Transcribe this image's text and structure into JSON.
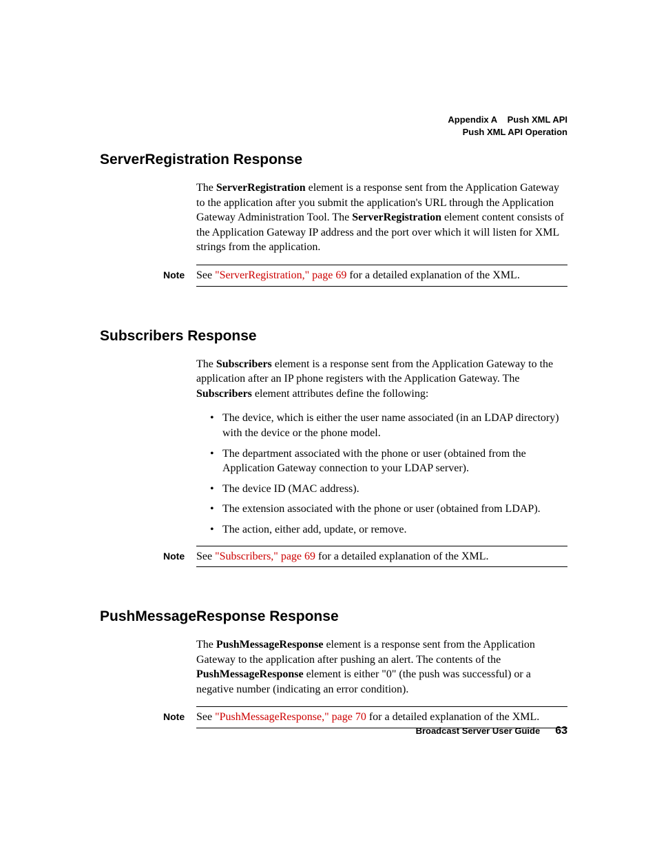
{
  "header": {
    "line1_left": "Appendix A",
    "line1_right": "Push XML API",
    "line2": "Push XML API Operation"
  },
  "sections": {
    "serverReg": {
      "heading": "ServerRegistration Response",
      "para_html": "The <b>ServerRegistration</b> element is a response sent from the Application Gateway to the application after you submit the application's URL through the Application Gateway Administration Tool. The <b>ServerRegistration</b> element content consists of the Application Gateway IP address and the port over which it will listen for XML strings from the application.",
      "note": {
        "label": "Note",
        "pre": "See ",
        "link": "\"ServerRegistration,\" page 69",
        "post": " for a detailed explanation of the XML."
      }
    },
    "subscribers": {
      "heading": "Subscribers Response",
      "para_html": "The <b>Subscribers</b> element is a response sent from the Application Gateway to the application after an IP phone registers with the Application Gateway. The <b>Subscribers</b> element attributes define the following:",
      "bullets": [
        "The device, which is either the user name associated (in an LDAP directory) with the device or the phone model.",
        "The department associated with the phone or user (obtained from the Application Gateway connection to your LDAP server).",
        "The device ID (MAC address).",
        "The extension associated with the phone or user (obtained from LDAP).",
        "The action, either add, update, or remove."
      ],
      "note": {
        "label": "Note",
        "pre": "See ",
        "link": "\"Subscribers,\" page 69",
        "post": " for a detailed explanation of the XML."
      }
    },
    "pushMsg": {
      "heading": "PushMessageResponse Response",
      "para_html": "The <b>PushMessageResponse</b> element is a response sent from the Application Gateway to the application after pushing an alert. The contents of the <b>PushMessageResponse</b> element is either \"0\" (the push was successful) or a negative number (indicating an error condition).",
      "note": {
        "label": "Note",
        "pre": "See ",
        "link": "\"PushMessageResponse,\" page 70",
        "post": " for a detailed explanation of the XML."
      }
    }
  },
  "footer": {
    "guide": "Broadcast Server User Guide",
    "page": "63"
  },
  "colors": {
    "link": "#cc0000",
    "text": "#000000",
    "background": "#ffffff"
  }
}
